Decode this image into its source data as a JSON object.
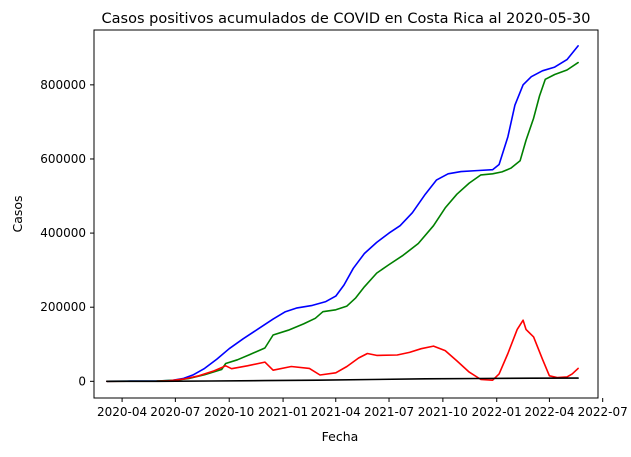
{
  "chart_data": {
    "type": "line",
    "title": "Casos positivos acumulados de COVID en Costa Rica al 2020-05-30",
    "xlabel": "Fecha",
    "ylabel": "Casos",
    "x_axis": "date",
    "xlim": [
      "2020-02-13",
      "2022-06-23"
    ],
    "ylim": [
      -45000,
      948000
    ],
    "grid": false,
    "legend": "none",
    "x_ticks": [
      {
        "date": "2020-04-01",
        "label": "2020-04"
      },
      {
        "date": "2020-07-01",
        "label": "2020-07"
      },
      {
        "date": "2020-10-01",
        "label": "2020-10"
      },
      {
        "date": "2021-01-01",
        "label": "2021-01"
      },
      {
        "date": "2021-04-01",
        "label": "2021-04"
      },
      {
        "date": "2021-07-01",
        "label": "2021-07"
      },
      {
        "date": "2021-10-01",
        "label": "2021-10"
      },
      {
        "date": "2022-01-01",
        "label": "2022-01"
      },
      {
        "date": "2022-04-01",
        "label": "2022-04"
      },
      {
        "date": "2022-07-01",
        "label": "2022-07"
      }
    ],
    "y_ticks": [
      {
        "value": 0,
        "label": "0"
      },
      {
        "value": 200000,
        "label": "200000"
      },
      {
        "value": 400000,
        "label": "400000"
      },
      {
        "value": 600000,
        "label": "600000"
      },
      {
        "value": 800000,
        "label": "800000"
      }
    ],
    "series": [
      {
        "color": "#0000ff",
        "points": [
          [
            "2020-03-06",
            0
          ],
          [
            "2020-04-15",
            700
          ],
          [
            "2020-05-30",
            1000
          ],
          [
            "2020-06-25",
            2500
          ],
          [
            "2020-07-15",
            8000
          ],
          [
            "2020-08-01",
            18000
          ],
          [
            "2020-08-20",
            35000
          ],
          [
            "2020-09-10",
            60000
          ],
          [
            "2020-10-01",
            88000
          ],
          [
            "2020-10-25",
            115000
          ],
          [
            "2020-11-20",
            142000
          ],
          [
            "2020-12-15",
            168000
          ],
          [
            "2021-01-05",
            188000
          ],
          [
            "2021-01-25",
            198000
          ],
          [
            "2021-02-20",
            205000
          ],
          [
            "2021-03-15",
            215000
          ],
          [
            "2021-04-01",
            230000
          ],
          [
            "2021-04-15",
            260000
          ],
          [
            "2021-05-01",
            305000
          ],
          [
            "2021-05-20",
            345000
          ],
          [
            "2021-06-10",
            375000
          ],
          [
            "2021-07-01",
            400000
          ],
          [
            "2021-07-20",
            420000
          ],
          [
            "2021-08-10",
            455000
          ],
          [
            "2021-09-01",
            505000
          ],
          [
            "2021-09-20",
            543000
          ],
          [
            "2021-10-10",
            560000
          ],
          [
            "2021-11-01",
            566000
          ],
          [
            "2021-12-01",
            569000
          ],
          [
            "2021-12-25",
            571000
          ],
          [
            "2022-01-05",
            585000
          ],
          [
            "2022-01-20",
            660000
          ],
          [
            "2022-02-01",
            745000
          ],
          [
            "2022-02-15",
            800000
          ],
          [
            "2022-03-01",
            822000
          ],
          [
            "2022-03-20",
            838000
          ],
          [
            "2022-04-10",
            848000
          ],
          [
            "2022-05-01",
            868000
          ],
          [
            "2022-05-20",
            905000
          ]
        ]
      },
      {
        "color": "#008000",
        "points": [
          [
            "2020-03-06",
            0
          ],
          [
            "2020-05-30",
            500
          ],
          [
            "2020-07-01",
            3000
          ],
          [
            "2020-07-25",
            8000
          ],
          [
            "2020-08-20",
            18000
          ],
          [
            "2020-09-18",
            32000
          ],
          [
            "2020-09-25",
            48000
          ],
          [
            "2020-10-15",
            58000
          ],
          [
            "2020-11-05",
            72000
          ],
          [
            "2020-12-01",
            90000
          ],
          [
            "2020-12-15",
            125000
          ],
          [
            "2021-01-10",
            138000
          ],
          [
            "2021-02-05",
            155000
          ],
          [
            "2021-02-25",
            170000
          ],
          [
            "2021-03-10",
            188000
          ],
          [
            "2021-04-01",
            193000
          ],
          [
            "2021-04-20",
            203000
          ],
          [
            "2021-05-05",
            225000
          ],
          [
            "2021-05-20",
            255000
          ],
          [
            "2021-06-10",
            292000
          ],
          [
            "2021-07-01",
            315000
          ],
          [
            "2021-07-25",
            340000
          ],
          [
            "2021-08-20",
            372000
          ],
          [
            "2021-09-15",
            420000
          ],
          [
            "2021-10-05",
            468000
          ],
          [
            "2021-10-25",
            505000
          ],
          [
            "2021-11-15",
            535000
          ],
          [
            "2021-12-05",
            557000
          ],
          [
            "2021-12-25",
            560000
          ],
          [
            "2022-01-10",
            565000
          ],
          [
            "2022-01-25",
            575000
          ],
          [
            "2022-02-10",
            595000
          ],
          [
            "2022-02-20",
            650000
          ],
          [
            "2022-03-05",
            710000
          ],
          [
            "2022-03-15",
            770000
          ],
          [
            "2022-03-25",
            815000
          ],
          [
            "2022-04-10",
            828000
          ],
          [
            "2022-05-01",
            840000
          ],
          [
            "2022-05-20",
            860000
          ]
        ]
      },
      {
        "color": "#ff0000",
        "points": [
          [
            "2020-03-06",
            0
          ],
          [
            "2020-05-30",
            300
          ],
          [
            "2020-06-20",
            1500
          ],
          [
            "2020-07-15",
            6000
          ],
          [
            "2020-08-10",
            15000
          ],
          [
            "2020-09-05",
            28000
          ],
          [
            "2020-09-25",
            42000
          ],
          [
            "2020-10-05",
            34000
          ],
          [
            "2020-11-01",
            42000
          ],
          [
            "2020-12-01",
            52000
          ],
          [
            "2020-12-15",
            30000
          ],
          [
            "2021-01-15",
            40000
          ],
          [
            "2021-02-15",
            35000
          ],
          [
            "2021-03-05",
            17000
          ],
          [
            "2021-04-01",
            23000
          ],
          [
            "2021-04-20",
            40000
          ],
          [
            "2021-05-10",
            63000
          ],
          [
            "2021-05-25",
            75000
          ],
          [
            "2021-06-10",
            70000
          ],
          [
            "2021-07-15",
            71000
          ],
          [
            "2021-08-05",
            78000
          ],
          [
            "2021-08-25",
            88000
          ],
          [
            "2021-09-15",
            95000
          ],
          [
            "2021-10-05",
            83000
          ],
          [
            "2021-10-25",
            55000
          ],
          [
            "2021-11-15",
            25000
          ],
          [
            "2021-12-05",
            5000
          ],
          [
            "2021-12-25",
            3000
          ],
          [
            "2022-01-05",
            20000
          ],
          [
            "2022-01-20",
            75000
          ],
          [
            "2022-02-05",
            140000
          ],
          [
            "2022-02-15",
            165000
          ],
          [
            "2022-02-20",
            140000
          ],
          [
            "2022-03-05",
            120000
          ],
          [
            "2022-03-20",
            60000
          ],
          [
            "2022-04-01",
            15000
          ],
          [
            "2022-04-15",
            10000
          ],
          [
            "2022-05-01",
            12000
          ],
          [
            "2022-05-10",
            20000
          ],
          [
            "2022-05-20",
            35000
          ]
        ]
      },
      {
        "color": "#000000",
        "points": [
          [
            "2020-03-06",
            0
          ],
          [
            "2020-06-01",
            100
          ],
          [
            "2020-09-01",
            800
          ],
          [
            "2020-12-01",
            2000
          ],
          [
            "2021-03-01",
            3100
          ],
          [
            "2021-06-01",
            4800
          ],
          [
            "2021-09-01",
            6800
          ],
          [
            "2021-12-01",
            7600
          ],
          [
            "2022-03-01",
            8300
          ],
          [
            "2022-05-20",
            8600
          ]
        ]
      }
    ]
  }
}
